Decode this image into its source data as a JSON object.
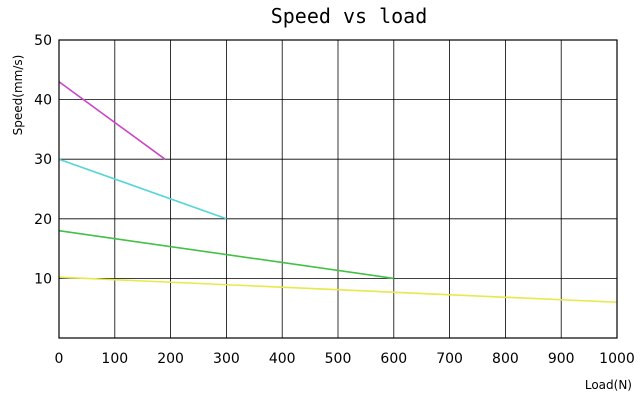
{
  "chart_data": {
    "type": "line",
    "title": "Speed   vs  load",
    "xlabel": "Load(N)",
    "ylabel": "Speed(mm/s)",
    "xlim": [
      0,
      1000
    ],
    "ylim": [
      0,
      50
    ],
    "x_ticks": [
      "0",
      "100",
      "200",
      "300",
      "400",
      "500",
      "600",
      "700",
      "800",
      "900",
      "1000"
    ],
    "y_ticks": [
      "10",
      "20",
      "30",
      "40",
      "50"
    ],
    "grid": true,
    "legend": "none",
    "series": [
      {
        "color": "#cc44cc",
        "points": [
          [
            0,
            43
          ],
          [
            190,
            30
          ]
        ]
      },
      {
        "color": "#55d5d5",
        "points": [
          [
            0,
            30
          ],
          [
            300,
            20
          ]
        ]
      },
      {
        "color": "#44c044",
        "points": [
          [
            0,
            18
          ],
          [
            600,
            10
          ]
        ]
      },
      {
        "color": "#e8e84a",
        "points": [
          [
            0,
            10.2
          ],
          [
            1000,
            6
          ]
        ]
      }
    ]
  }
}
